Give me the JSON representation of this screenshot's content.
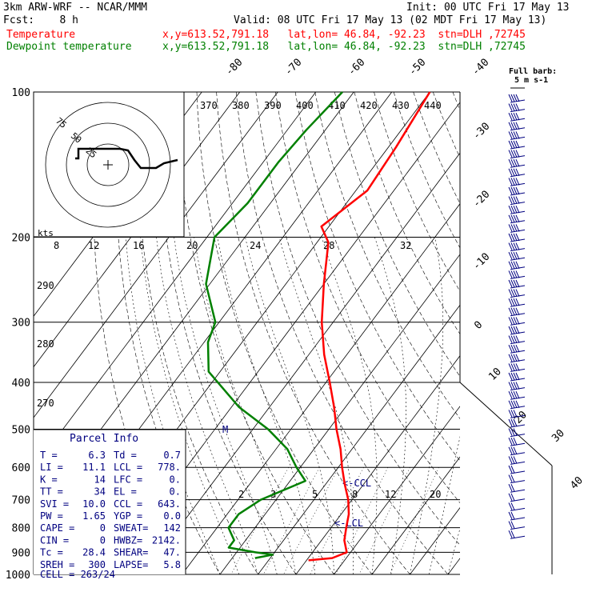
{
  "header": {
    "model": "3km ARW-WRF -- NCAR/MMM",
    "init": "Init: 00 UTC Fri 17 May 13",
    "fcst": "Fcst:    8 h",
    "valid": "Valid: 08 UTC Fri 17 May 13 (02 MDT Fri 17 May 13)",
    "temp_label": "Temperature",
    "dew_label": "Dewpoint temperature",
    "temp_info": "x,y=613.52,791.18   lat,lon= 46.84, -92.23  stn=DLH ,72745",
    "dew_info": "x,y=613.52,791.18   lat,lon= 46.84, -92.23  stn=DLH ,72745"
  },
  "colors": {
    "temperature": "#ff0000",
    "dewpoint": "#008000",
    "diagram": "#000000",
    "annotation": "#000080"
  },
  "chart_data": {
    "type": "line",
    "title": "Skew-T log-P sounding",
    "y_axis": {
      "label": "",
      "scale": "log",
      "ticks": [
        100,
        200,
        300,
        400,
        500,
        600,
        700,
        800,
        900,
        1000
      ]
    },
    "isotherm_labels": [
      -80,
      -70,
      -60,
      -50,
      -40,
      -30,
      -20,
      -10,
      0,
      10,
      20,
      30,
      40
    ],
    "theta_labels": [
      370,
      380,
      390,
      400,
      410,
      420,
      430,
      440
    ],
    "mixing_ratio_labels_top": [
      8,
      12,
      16,
      20,
      24,
      28,
      32
    ],
    "mixing_ratio_labels_low": [
      2,
      3,
      5,
      8,
      12,
      20
    ],
    "theta_e_labels": [
      290,
      280,
      270
    ],
    "series": [
      {
        "name": "Temperature",
        "points": [
          {
            "p": 100,
            "t": -60
          },
          {
            "p": 130,
            "t": -58
          },
          {
            "p": 160,
            "t": -57
          },
          {
            "p": 190,
            "t": -62
          },
          {
            "p": 205,
            "t": -57
          },
          {
            "p": 250,
            "t": -50
          },
          {
            "p": 300,
            "t": -43
          },
          {
            "p": 350,
            "t": -36
          },
          {
            "p": 400,
            "t": -29
          },
          {
            "p": 450,
            "t": -23
          },
          {
            "p": 500,
            "t": -18
          },
          {
            "p": 550,
            "t": -13
          },
          {
            "p": 600,
            "t": -9
          },
          {
            "p": 650,
            "t": -5
          },
          {
            "p": 700,
            "t": -1
          },
          {
            "p": 750,
            "t": 2
          },
          {
            "p": 800,
            "t": 4
          },
          {
            "p": 850,
            "t": 6
          },
          {
            "p": 900,
            "t": 9
          },
          {
            "p": 925,
            "t": 6.3
          },
          {
            "p": 935,
            "t": 0.5
          }
        ]
      },
      {
        "name": "Dewpoint temperature",
        "points": [
          {
            "p": 100,
            "t": -83
          },
          {
            "p": 120,
            "t": -85
          },
          {
            "p": 140,
            "t": -86
          },
          {
            "p": 170,
            "t": -86
          },
          {
            "p": 200,
            "t": -88
          },
          {
            "p": 250,
            "t": -81
          },
          {
            "p": 300,
            "t": -71
          },
          {
            "p": 330,
            "t": -69
          },
          {
            "p": 380,
            "t": -63
          },
          {
            "p": 450,
            "t": -48
          },
          {
            "p": 500,
            "t": -36
          },
          {
            "p": 550,
            "t": -27
          },
          {
            "p": 600,
            "t": -21
          },
          {
            "p": 640,
            "t": -16
          },
          {
            "p": 700,
            "t": -24
          },
          {
            "p": 750,
            "t": -27
          },
          {
            "p": 800,
            "t": -27
          },
          {
            "p": 850,
            "t": -23
          },
          {
            "p": 880,
            "t": -23
          },
          {
            "p": 900,
            "t": -15
          },
          {
            "p": 910,
            "t": -10
          },
          {
            "p": 925,
            "t": -14
          }
        ]
      }
    ],
    "annotations": [
      "CCL",
      "LCL",
      "M"
    ],
    "hodograph": {
      "units": "kts",
      "ring_labels": [
        25,
        50,
        75
      ]
    },
    "wind_barbs": {
      "label": "Full barb:",
      "value": "5 m s-1"
    }
  },
  "parcel_info": {
    "title": "Parcel Info",
    "rows": [
      {
        "k1": "T  =",
        "v1": "6.3",
        "k2": "Td =",
        "v2": "0.7"
      },
      {
        "k1": "LI =",
        "v1": "11.1",
        "k2": "LCL =",
        "v2": "778."
      },
      {
        "k1": "K  =",
        "v1": "14",
        "k2": "LFC =",
        "v2": "0."
      },
      {
        "k1": "TT =",
        "v1": "34",
        "k2": "EL  =",
        "v2": "0."
      },
      {
        "k1": "SVI =",
        "v1": "10.0",
        "k2": "CCL =",
        "v2": "643."
      },
      {
        "k1": "PW =",
        "v1": "1.65",
        "k2": "YGP =",
        "v2": "0.0"
      },
      {
        "k1": "CAPE =",
        "v1": "0",
        "k2": "SWEAT=",
        "v2": "142"
      },
      {
        "k1": "CIN  =",
        "v1": "0",
        "k2": "HWBZ=",
        "v2": "2142."
      },
      {
        "k1": "Tc   =",
        "v1": "28.4",
        "k2": "SHEAR=",
        "v2": "47."
      },
      {
        "k1": "SREH =",
        "v1": "300",
        "k2": "LAPSE=",
        "v2": "5.8"
      }
    ],
    "cell": "CELL = 263/24"
  }
}
